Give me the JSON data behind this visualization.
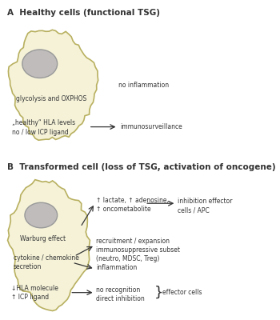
{
  "bg_color": "#ffffff",
  "cell_fill": "#f5f2d8",
  "cell_edge": "#b8b060",
  "nucleus_fill": "#c0bcbc",
  "nucleus_edge": "#999999",
  "arrow_color": "#333333",
  "text_color": "#333333",
  "title_A": "A  Healthy cells (functional TSG)",
  "title_B": "B  Transformed cell (loss of TSG, activation of oncogene)",
  "label_A_cell1": "glycolysis and OXPHOS",
  "label_A_text1": "no inflammation",
  "label_A_text2": "„healthy“ HLA levels\nno / low ICP ligand",
  "label_A_arrow1": "immunosurveillance",
  "label_B_warburg": "Warburg effect",
  "label_B_cytokine": "cytokine / chemokine\nsecretion",
  "label_B_hla": "↓HLA molecule\n↑ ICP ligand",
  "label_B_lactate": "↑ lactate, ↑ adenosine,\n↑ oncometabolite",
  "label_B_inhibition": "inhibition effector\ncells / APC",
  "label_B_recruitment": "recruitment / expansion\nimmunosuppressive subset\n(neutro, MDSC, Treg)",
  "label_B_inflammation": "inflammation",
  "label_B_norecog": "no recognition\ndirect inhibition",
  "label_B_effector": "effector cells",
  "font_size_title": 7.5,
  "font_size_label": 6.0,
  "font_size_small": 5.5
}
